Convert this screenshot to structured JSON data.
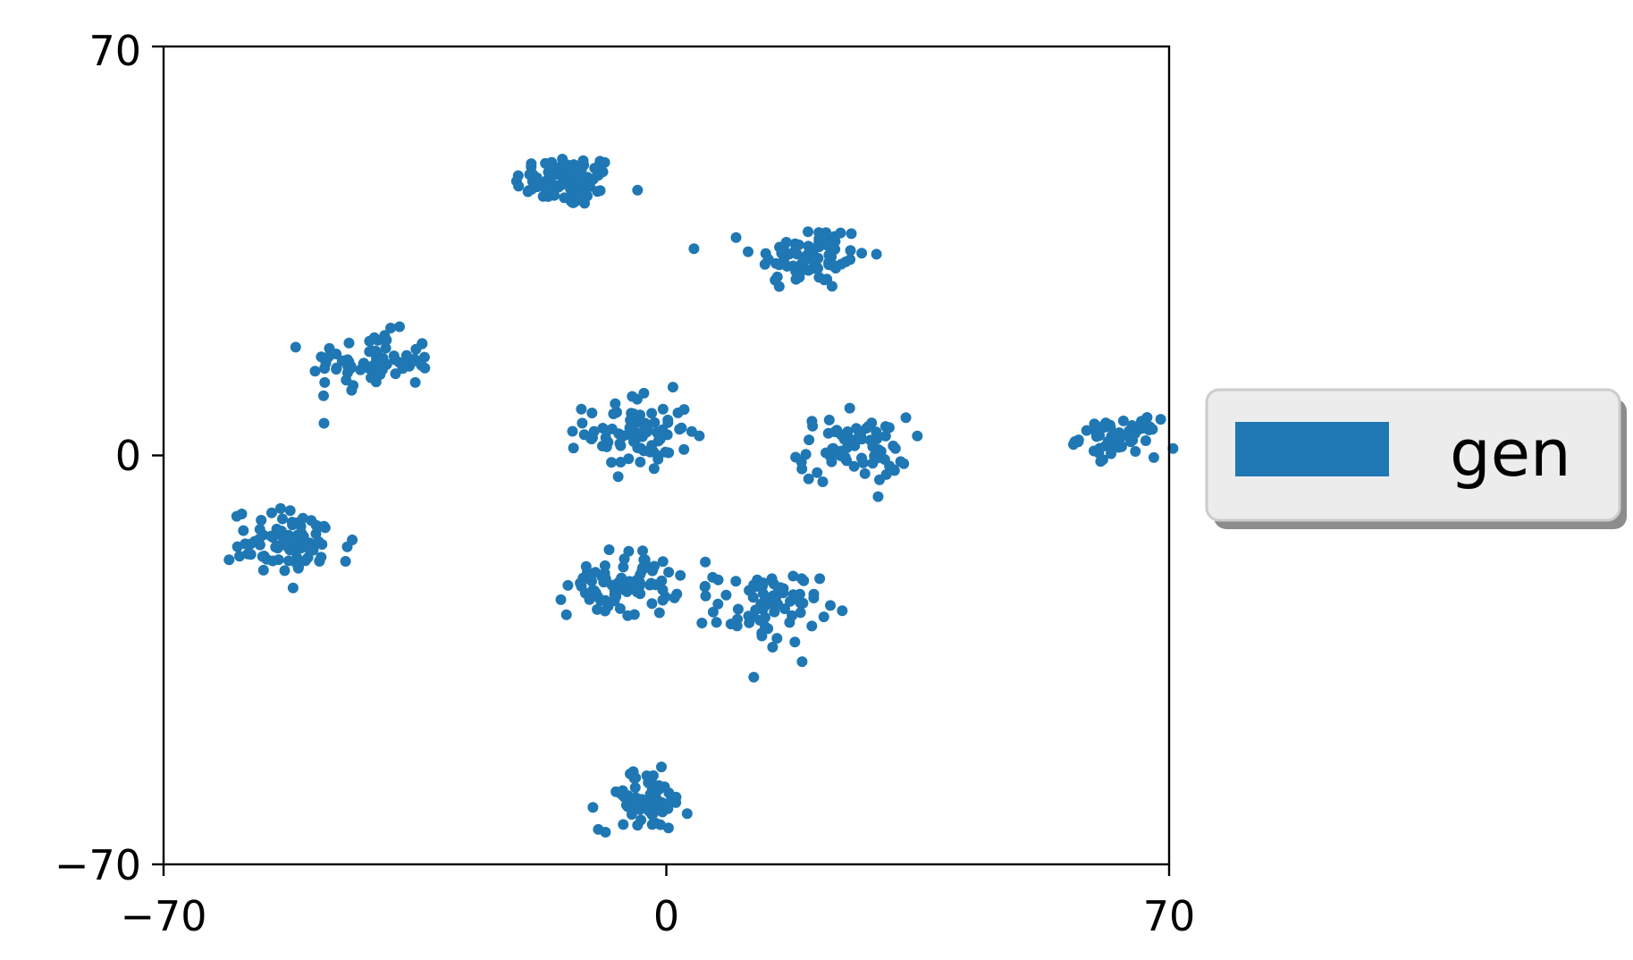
{
  "chart_data": {
    "type": "scatter",
    "xlim": [
      -70,
      70
    ],
    "ylim": [
      -70,
      70
    ],
    "xticks": [
      -70,
      0,
      70
    ],
    "yticks": [
      -70,
      0,
      70
    ],
    "xtick_labels": [
      "−70",
      "0",
      "70"
    ],
    "ytick_labels": [
      "−70",
      "0",
      "70"
    ],
    "grid": false,
    "legend_position": "right-outside",
    "series": [
      {
        "name": "gen",
        "color": "#1f77b4",
        "clusters": [
          {
            "center": [
              -14,
              47
            ],
            "spread": [
              3.6,
              2.2
            ],
            "count": 85
          },
          {
            "center": [
              20,
              34
            ],
            "spread": [
              4.0,
              2.9
            ],
            "count": 80
          },
          {
            "center": [
              -41,
              16
            ],
            "spread": [
              4.3,
              2.5
            ],
            "count": 75
          },
          {
            "center": [
              -4,
              4
            ],
            "spread": [
              3.6,
              3.3
            ],
            "count": 80
          },
          {
            "center": [
              26,
              1
            ],
            "spread": [
              3.8,
              2.8
            ],
            "count": 75
          },
          {
            "center": [
              63,
              3
            ],
            "spread": [
              2.7,
              1.6
            ],
            "count": 60
          },
          {
            "center": [
              -52,
              -15
            ],
            "spread": [
              4.3,
              2.8
            ],
            "count": 85
          },
          {
            "center": [
              -6,
              -22
            ],
            "spread": [
              3.8,
              2.8
            ],
            "count": 80
          },
          {
            "center": [
              14,
              -26
            ],
            "spread": [
              3.6,
              3.1
            ],
            "count": 75
          },
          {
            "center": [
              -3,
              -59
            ],
            "spread": [
              3.1,
              2.6
            ],
            "count": 70
          }
        ]
      }
    ]
  }
}
